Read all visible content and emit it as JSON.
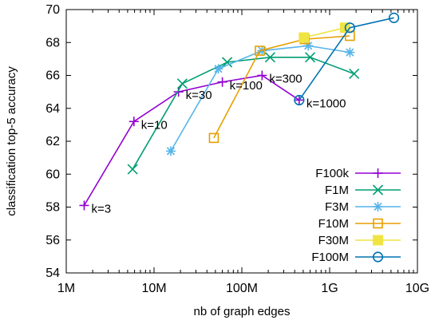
{
  "chart_data": {
    "type": "line",
    "xlabel": "nb of graph edges",
    "ylabel": "classification top-5 accuracy",
    "xscale": "log",
    "xlim": [
      1000000,
      10000000000
    ],
    "ylim": [
      54,
      70
    ],
    "xticks": [
      {
        "value": 1000000,
        "label": "1M"
      },
      {
        "value": 10000000,
        "label": "10M"
      },
      {
        "value": 100000000,
        "label": "100M"
      },
      {
        "value": 1000000000,
        "label": "1G"
      },
      {
        "value": 10000000000,
        "label": "10G"
      }
    ],
    "yticks": [
      54,
      56,
      58,
      60,
      62,
      64,
      66,
      68,
      70
    ],
    "grid": false,
    "legend_position": "bottom-right",
    "series": [
      {
        "name": "F100k",
        "color": "#9400d3",
        "marker": "plus",
        "x": [
          1600000,
          5900000,
          19000000,
          60000000,
          170000000,
          450000000
        ],
        "y": [
          58.1,
          63.2,
          65.0,
          65.6,
          66.0,
          64.5
        ]
      },
      {
        "name": "F1M",
        "color": "#009e73",
        "marker": "cross",
        "x": [
          5700000,
          21000000,
          68000000,
          210000000,
          600000000,
          1900000000
        ],
        "y": [
          60.3,
          65.5,
          66.8,
          67.1,
          67.1,
          66.1
        ]
      },
      {
        "name": "F3M",
        "color": "#56b4e9",
        "marker": "star",
        "x": [
          15500000,
          54000000,
          170000000,
          570000000,
          1700000000
        ],
        "y": [
          61.4,
          66.4,
          67.5,
          67.8,
          67.4
        ]
      },
      {
        "name": "F10M",
        "color": "#e69f00",
        "marker": "square-open",
        "x": [
          48000000,
          160000000,
          520000000,
          1700000000
        ],
        "y": [
          62.2,
          67.5,
          68.2,
          68.4
        ]
      },
      {
        "name": "F30M",
        "color": "#f0e442",
        "marker": "square-filled",
        "x": [
          510000000,
          1500000000
        ],
        "y": [
          68.3,
          68.9
        ]
      },
      {
        "name": "F100M",
        "color": "#0072b2",
        "marker": "circle-open",
        "x": [
          450000000,
          1700000000,
          5400000000
        ],
        "y": [
          64.5,
          68.9,
          69.5
        ]
      }
    ],
    "annotations": [
      {
        "text": "k=3",
        "x": 1600000,
        "y": 58.1
      },
      {
        "text": "k=10",
        "x": 5900000,
        "y": 63.2
      },
      {
        "text": "k=30",
        "x": 19000000,
        "y": 65.0
      },
      {
        "text": "k=100",
        "x": 60000000,
        "y": 65.6
      },
      {
        "text": "k=300",
        "x": 170000000,
        "y": 66.0
      },
      {
        "text": "k=1000",
        "x": 450000000,
        "y": 64.5
      }
    ]
  }
}
